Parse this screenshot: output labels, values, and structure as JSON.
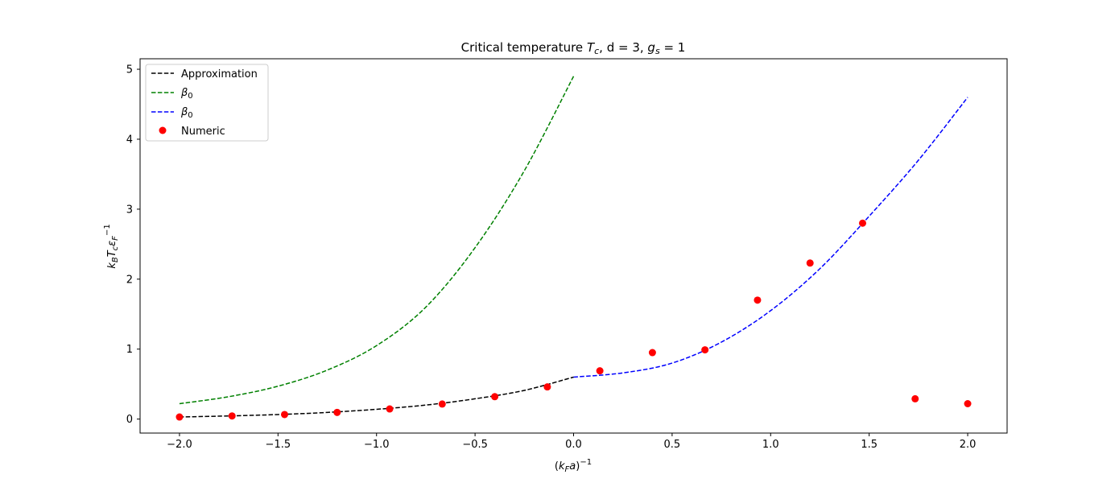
{
  "chart_data": {
    "type": "line",
    "title": "Critical temperature T_c, d = 3, g_s = 1",
    "xlabel": "(k_F a)^{-1}",
    "ylabel": "k_B T_c ε_F^{-1}",
    "xlim": [
      -2.2,
      2.2
    ],
    "ylim": [
      -0.2,
      5.15
    ],
    "xticks": [
      -2.0,
      -1.5,
      -1.0,
      -0.5,
      0.0,
      0.5,
      1.0,
      1.5,
      2.0
    ],
    "xtick_labels": [
      "−2.0",
      "−1.5",
      "−1.0",
      "−0.5",
      "0.0",
      "0.5",
      "1.0",
      "1.5",
      "2.0"
    ],
    "yticks": [
      0,
      1,
      2,
      3,
      4,
      5
    ],
    "ytick_labels": [
      "0",
      "1",
      "2",
      "3",
      "4",
      "5"
    ],
    "grid": false,
    "legend_position": "top-left",
    "series": [
      {
        "name": "Approximation",
        "style": "dashed",
        "color": "#000000",
        "x": [
          -2.0,
          -1.75,
          -1.5,
          -1.25,
          -1.0,
          -0.75,
          -0.5,
          -0.25,
          0.0
        ],
        "y": [
          0.03,
          0.045,
          0.065,
          0.095,
          0.14,
          0.2,
          0.29,
          0.41,
          0.6
        ]
      },
      {
        "name": "β0",
        "style": "dashed",
        "color": "#008000",
        "x": [
          -2.0,
          -1.75,
          -1.5,
          -1.25,
          -1.0,
          -0.75,
          -0.5,
          -0.25,
          0.0
        ],
        "y": [
          0.22,
          0.32,
          0.47,
          0.7,
          1.05,
          1.6,
          2.45,
          3.55,
          4.9
        ]
      },
      {
        "name": "β0",
        "style": "dashed",
        "color": "#0000ff",
        "x": [
          0.0,
          0.25,
          0.5,
          0.75,
          1.0,
          1.25,
          1.5,
          1.75,
          2.0
        ],
        "y": [
          0.6,
          0.66,
          0.8,
          1.1,
          1.55,
          2.15,
          2.9,
          3.7,
          4.6
        ]
      },
      {
        "name": "Numeric",
        "style": "markers",
        "color": "#ff0000",
        "x": [
          -2.0,
          -1.7333,
          -1.4667,
          -1.2,
          -0.9333,
          -0.6667,
          -0.4,
          -0.1333,
          0.1333,
          0.4,
          0.6667,
          0.9333,
          1.2,
          1.4667,
          1.7333,
          2.0
        ],
        "y": [
          0.03,
          0.045,
          0.065,
          0.095,
          0.145,
          0.215,
          0.32,
          0.46,
          0.69,
          0.95,
          0.99,
          1.7,
          2.23,
          2.8,
          0.29,
          0.22
        ]
      }
    ]
  }
}
